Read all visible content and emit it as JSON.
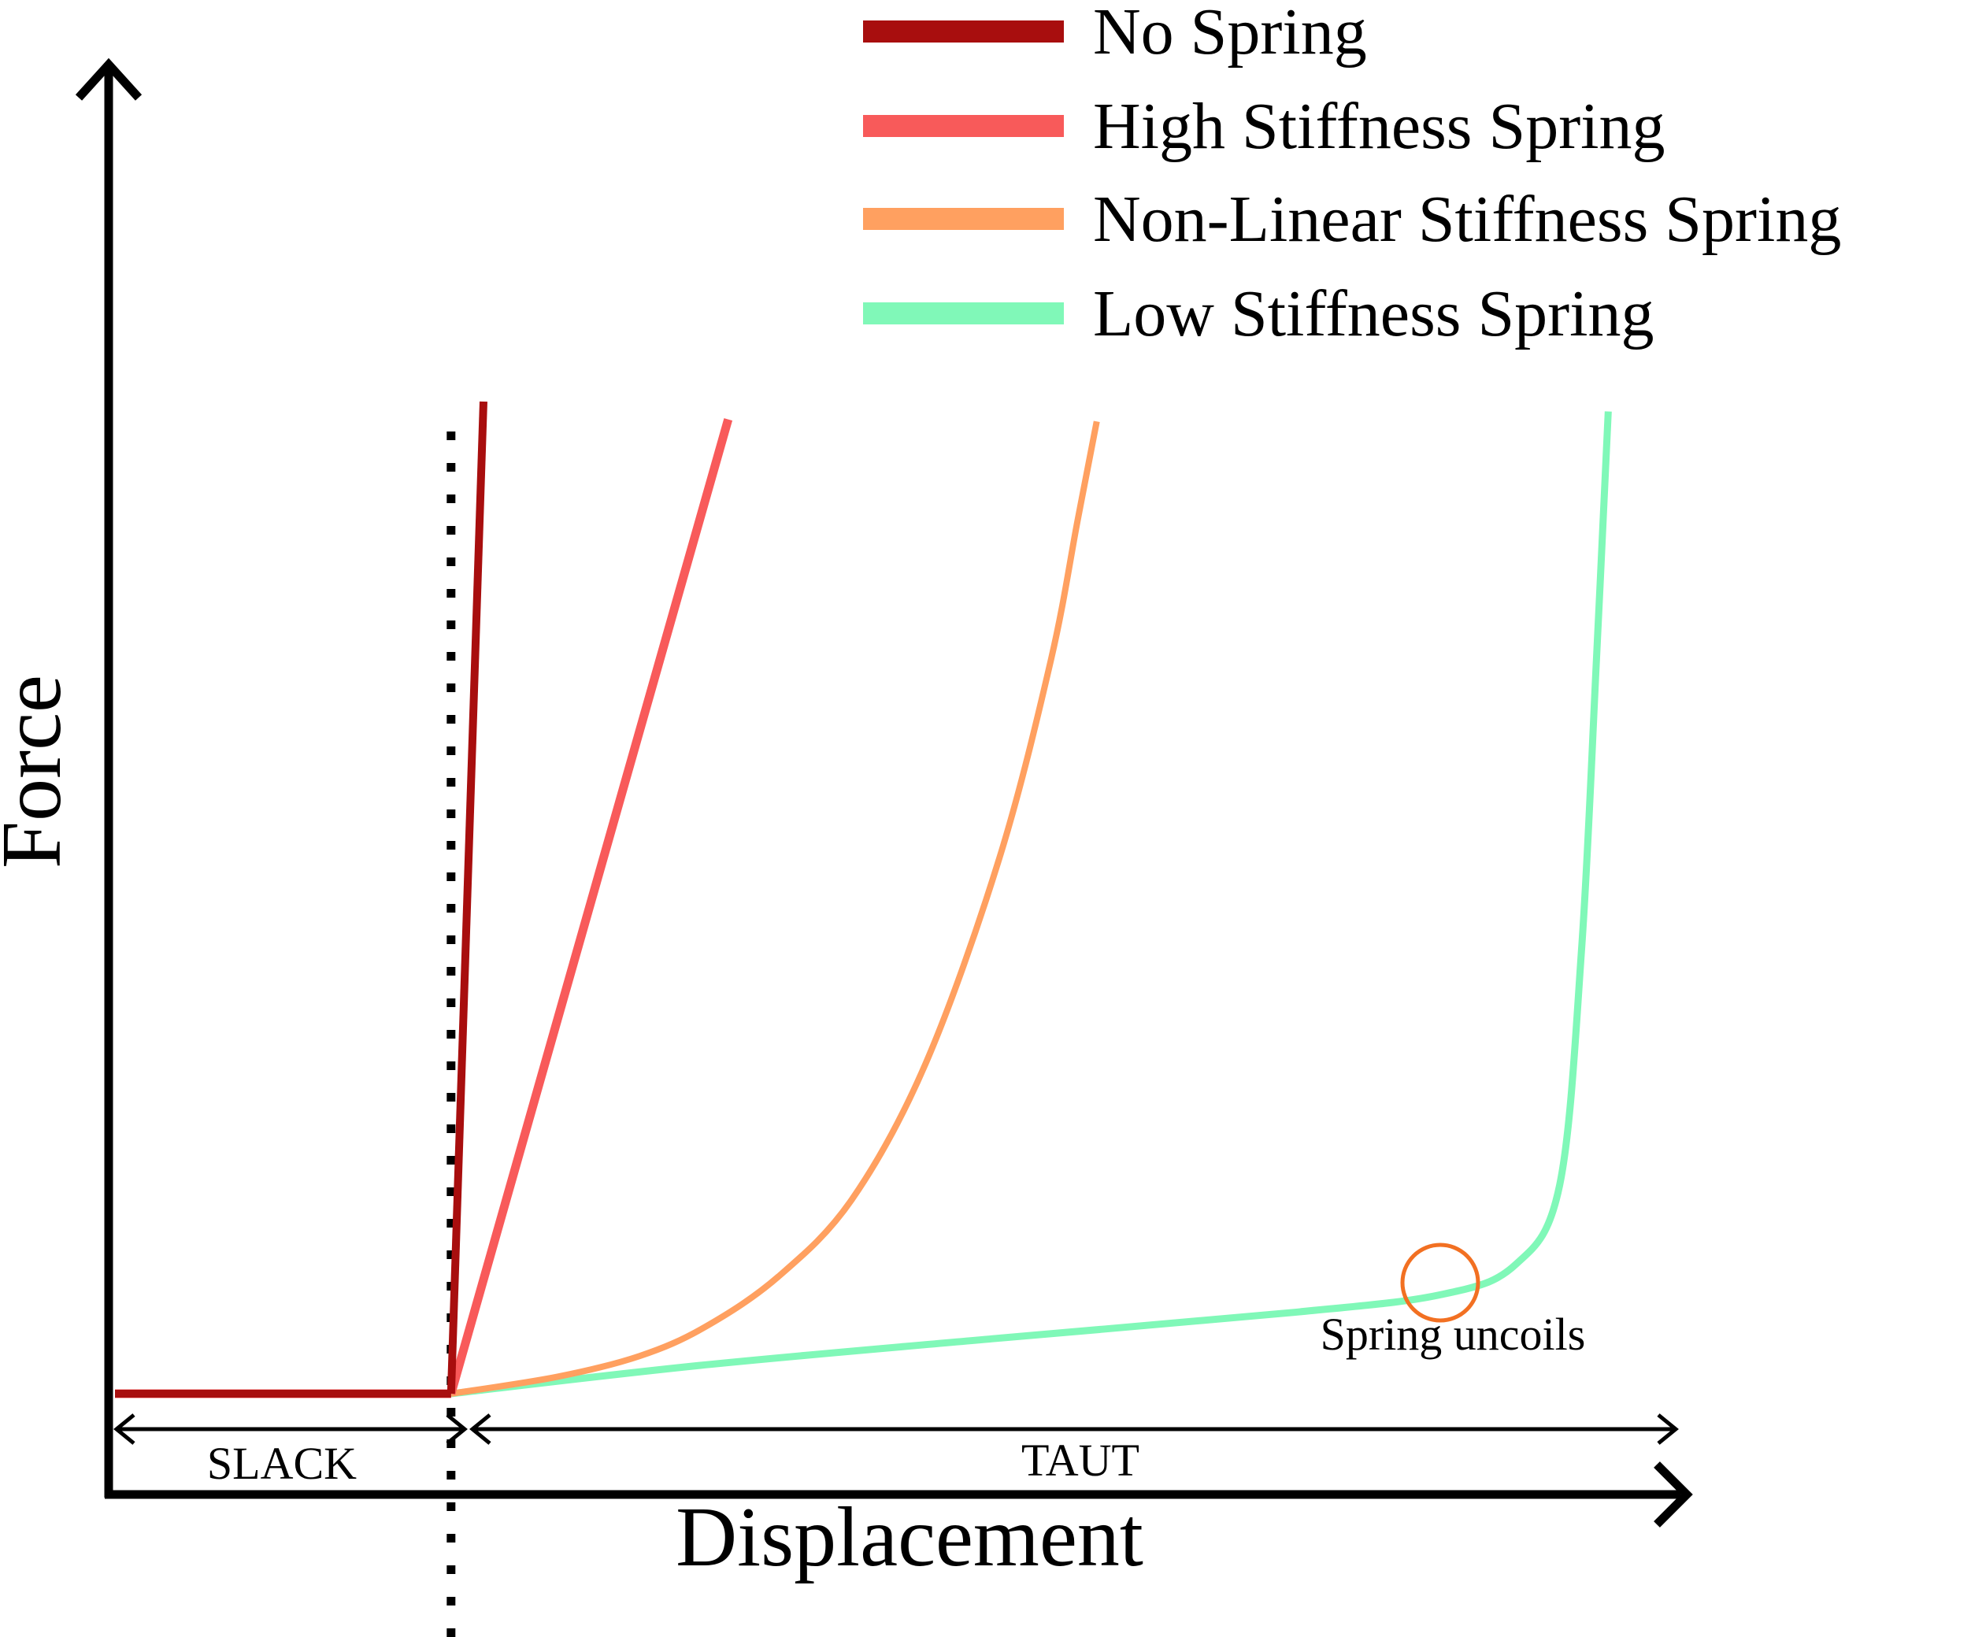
{
  "chart_data": {
    "type": "line",
    "xlabel": "Displacement",
    "ylabel": "Force",
    "xlim": [
      0,
      1
    ],
    "ylim": [
      0,
      1
    ],
    "grid": false,
    "legend_position": "top-right",
    "series": [
      {
        "name": "No Spring",
        "color": "#A80E0E",
        "points": [
          [
            0.0,
            0.0
          ],
          [
            0.228,
            0.0
          ],
          [
            0.25,
            1.0
          ]
        ]
      },
      {
        "name": "High Stiffness Spring",
        "color": "#F85A5A",
        "points": [
          [
            0.0,
            0.0
          ],
          [
            0.228,
            0.0
          ],
          [
            0.416,
            0.982
          ]
        ]
      },
      {
        "name": "Non-Linear Stiffness Spring",
        "color": "#FFA060",
        "points": [
          [
            0.0,
            0.0
          ],
          [
            0.228,
            0.0
          ],
          [
            0.3,
            0.017
          ],
          [
            0.356,
            0.038
          ],
          [
            0.4,
            0.067
          ],
          [
            0.45,
            0.118
          ],
          [
            0.5,
            0.196
          ],
          [
            0.55,
            0.333
          ],
          [
            0.6,
            0.54
          ],
          [
            0.635,
            0.74
          ],
          [
            0.653,
            0.88
          ],
          [
            0.666,
            0.98
          ]
        ]
      },
      {
        "name": "Low Stiffness Spring",
        "color": "#80F8B8",
        "points": [
          [
            0.0,
            0.0
          ],
          [
            0.228,
            0.0
          ],
          [
            0.4,
            0.029
          ],
          [
            0.6,
            0.056
          ],
          [
            0.8,
            0.082
          ],
          [
            0.9,
            0.1
          ],
          [
            0.95,
            0.13
          ],
          [
            0.98,
            0.21
          ],
          [
            0.995,
            0.45
          ],
          [
            1.005,
            0.74
          ],
          [
            1.013,
            0.99
          ]
        ]
      }
    ],
    "marker_line": {
      "x": 0.228,
      "style": "dotted"
    },
    "regions": [
      {
        "label": "SLACK",
        "x_start": 0.0,
        "x_end": 0.228
      },
      {
        "label": "TAUT",
        "x_start": 0.228,
        "x_end": 1.02
      }
    ],
    "annotations": [
      {
        "text": "Spring uncoils",
        "x": 0.85,
        "y": 0.11,
        "marker": "circle",
        "marker_color": "#F27022"
      }
    ]
  }
}
